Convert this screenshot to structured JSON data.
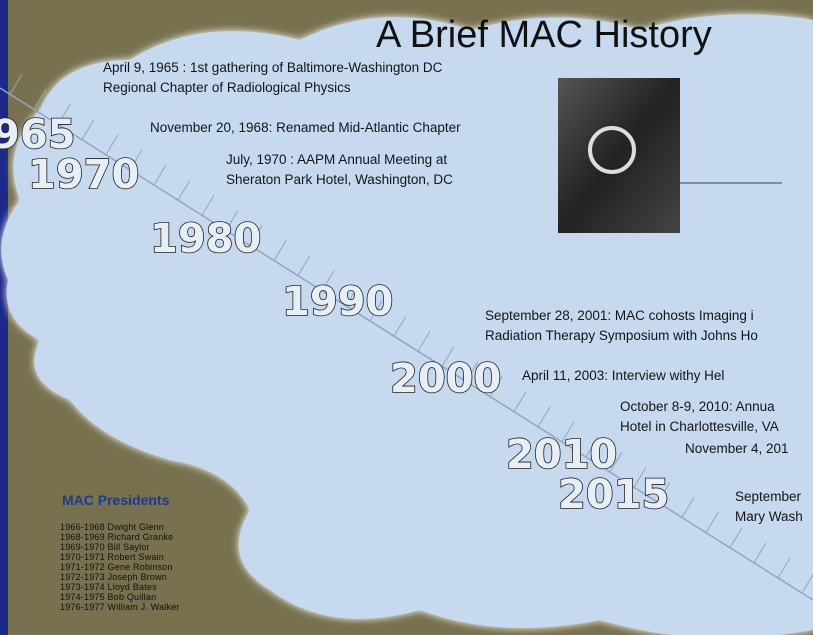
{
  "title": "A Brief MAC History",
  "years": [
    "965",
    "1970",
    "1980",
    "1990",
    "2000",
    "2010",
    "2015"
  ],
  "events": [
    {
      "lines": [
        "April 9, 1965 :  1st gathering of Baltimore-Washington DC",
        "Regional Chapter of Radiological Physics"
      ]
    },
    {
      "lines": [
        "November 20, 1968:  Renamed Mid-Atlantic Chapter"
      ]
    },
    {
      "lines": [
        "July, 1970 :  AAPM Annual Meeting at",
        "Sheraton Park Hotel, Washington, DC"
      ]
    },
    {
      "lines": [
        "September 28, 2001:  MAC cohosts Imaging i",
        "Radiation Therapy Symposium with Johns Ho"
      ]
    },
    {
      "lines": [
        "April 11, 2003:  Interview withy Hel"
      ]
    },
    {
      "lines": [
        "October 8-9, 2010:  Annua",
        "Hotel in Charlottesville, VA"
      ]
    },
    {
      "lines": [
        "November 4, 201"
      ]
    },
    {
      "lines": [
        "September",
        "Mary Wash"
      ]
    }
  ],
  "presidents": {
    "heading": "MAC Presidents",
    "rows": [
      "1966-1968 Dwight Glenn",
      "1968-1969 Richard Granke",
      "1969-1970 Bill Saylor",
      "1970-1971 Robert Swain",
      "1971-1972 Gene Robinson",
      "1972-1973 Joseph Brown",
      "1973-1974 Lloyd Bates",
      "1974-1975 Bob Quillan",
      "1976-1977 William J. Walker"
    ]
  }
}
